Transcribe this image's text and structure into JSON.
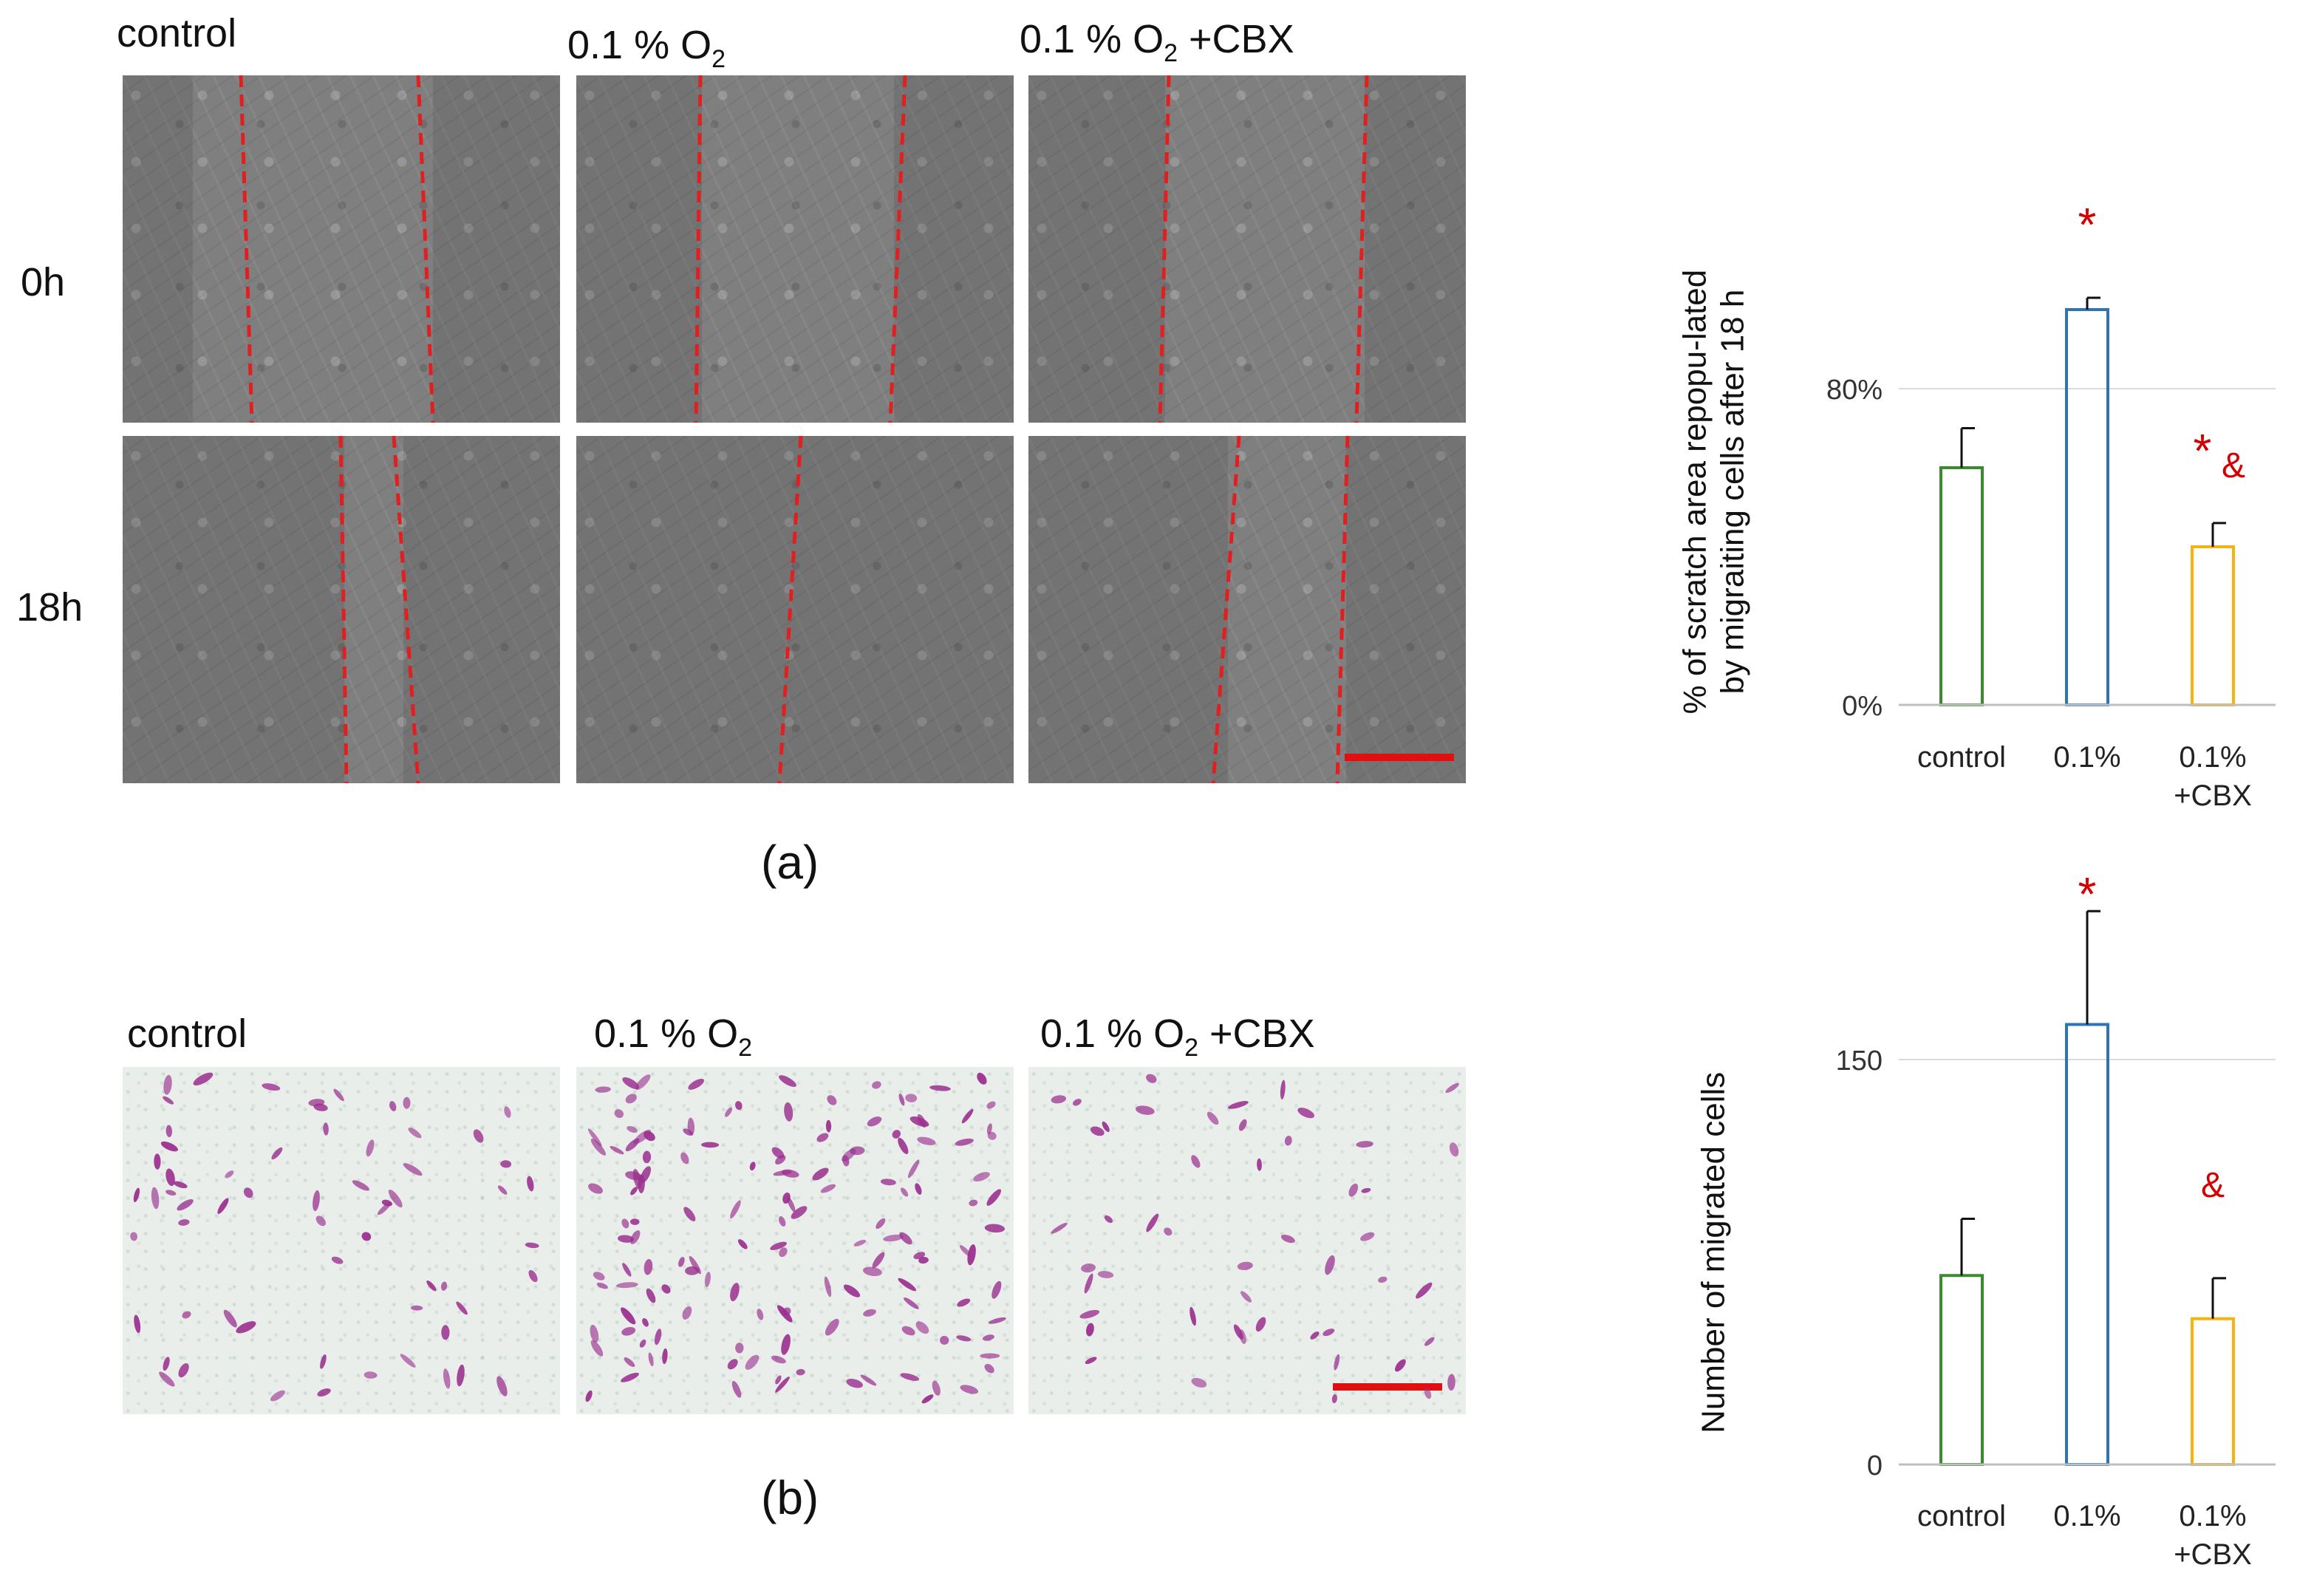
{
  "panel_a": {
    "figure_label": "(a)",
    "column_headers": [
      "control",
      "0.1 % O",
      "0.1 % O"
    ],
    "column_header_subscripts": [
      "",
      "2",
      "2"
    ],
    "column_header_suffixes": [
      "",
      "",
      " +CBX"
    ],
    "row_labels": [
      "0h",
      "18h"
    ]
  },
  "panel_b": {
    "figure_label": "(b)",
    "column_headers": [
      "control",
      "0.1 % O",
      "0.1 % O"
    ],
    "column_header_subscripts": [
      "",
      "2",
      "2"
    ],
    "column_header_suffixes": [
      "",
      "",
      " +CBX"
    ]
  },
  "colors": {
    "scratch_line": "#e02020",
    "scale_bar": "#e01010",
    "control": "#3a8a2e",
    "hypoxia": "#2e75b6",
    "cbx": "#f5b30e",
    "significance": "#d40000",
    "stain": "#9b2f8f"
  },
  "chart_data": [
    {
      "type": "bar",
      "ylabel_lines": [
        "% of scratch area repopu-lated",
        "by migraiting cells after 18 h"
      ],
      "categories": [
        "control",
        "0.1%",
        "0.1%\n+CBX"
      ],
      "values": [
        0.6,
        1.0,
        0.4
      ],
      "errors": [
        0.1,
        0.03,
        0.06
      ],
      "ylim": [
        0,
        1.1
      ],
      "yticks": [
        0,
        0.8
      ],
      "ytick_labels": [
        "0%",
        "80%"
      ],
      "annotations": [
        "",
        "*",
        "*&"
      ],
      "bar_colors": [
        "#3a8a2e",
        "#2e75b6",
        "#f5b30e"
      ],
      "grid": true
    },
    {
      "type": "bar",
      "ylabel": "Number of migrated cells",
      "categories": [
        "control",
        "0.1%",
        "0.1%\n+CBX"
      ],
      "values": [
        70,
        163,
        54
      ],
      "errors": [
        21,
        42,
        15
      ],
      "ylim": [
        0,
        220
      ],
      "yticks": [
        0,
        150
      ],
      "ytick_labels": [
        "0",
        "150"
      ],
      "annotations": [
        "",
        "*",
        "&"
      ],
      "bar_colors": [
        "#3a8a2e",
        "#2e75b6",
        "#f5b30e"
      ],
      "grid": true
    }
  ]
}
